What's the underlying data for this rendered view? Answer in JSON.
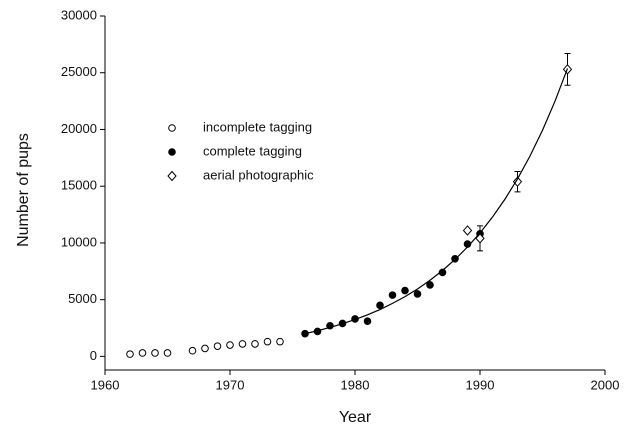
{
  "chart_data": {
    "type": "scatter",
    "x_label": "Year",
    "y_label": "Number of pups",
    "xlim": [
      1960,
      2000
    ],
    "xticks": [
      1960,
      1970,
      1980,
      1990,
      2000
    ],
    "ylim": [
      -1200,
      30000
    ],
    "yticks": [
      0,
      5000,
      10000,
      15000,
      20000,
      25000,
      30000
    ],
    "grid": false,
    "legend": "upper-left",
    "series": [
      {
        "name": "incomplete tagging",
        "marker": "open-circle",
        "color": "#000000",
        "x": [
          1962,
          1963,
          1964,
          1965,
          1967,
          1968,
          1969,
          1970,
          1971,
          1972,
          1973,
          1974
        ],
        "values": [
          200,
          300,
          300,
          300,
          500,
          700,
          900,
          1000,
          1100,
          1100,
          1300,
          1300
        ]
      },
      {
        "name": "complete tagging",
        "marker": "filled-circle",
        "color": "#000000",
        "x": [
          1976,
          1977,
          1978,
          1979,
          1980,
          1981,
          1982,
          1983,
          1984,
          1985,
          1986,
          1987,
          1988,
          1989,
          1990
        ],
        "values": [
          2000,
          2200,
          2700,
          2900,
          3300,
          3100,
          4500,
          5400,
          5800,
          5500,
          6300,
          7400,
          8600,
          9900,
          10800
        ]
      },
      {
        "name": "aerial photographic",
        "marker": "open-diamond",
        "color": "#000000",
        "x": [
          1989,
          1990,
          1993,
          1997
        ],
        "values": [
          11100,
          10400,
          15400,
          25300
        ],
        "errors": [
          null,
          1100,
          900,
          1400
        ]
      },
      {
        "marker": "line",
        "color": "#000000",
        "x": [
          1976,
          1977,
          1978,
          1979,
          1980,
          1981,
          1982,
          1983,
          1984,
          1985,
          1986,
          1987,
          1988,
          1989,
          1990,
          1991,
          1992,
          1993,
          1994,
          1995,
          1996,
          1997
        ],
        "values": [
          2000,
          2260,
          2550,
          2880,
          3250,
          3660,
          4130,
          4670,
          5270,
          5940,
          6710,
          7570,
          8540,
          9640,
          10880,
          12280,
          13860,
          15640,
          17660,
          19930,
          22490,
          25380
        ]
      }
    ]
  }
}
